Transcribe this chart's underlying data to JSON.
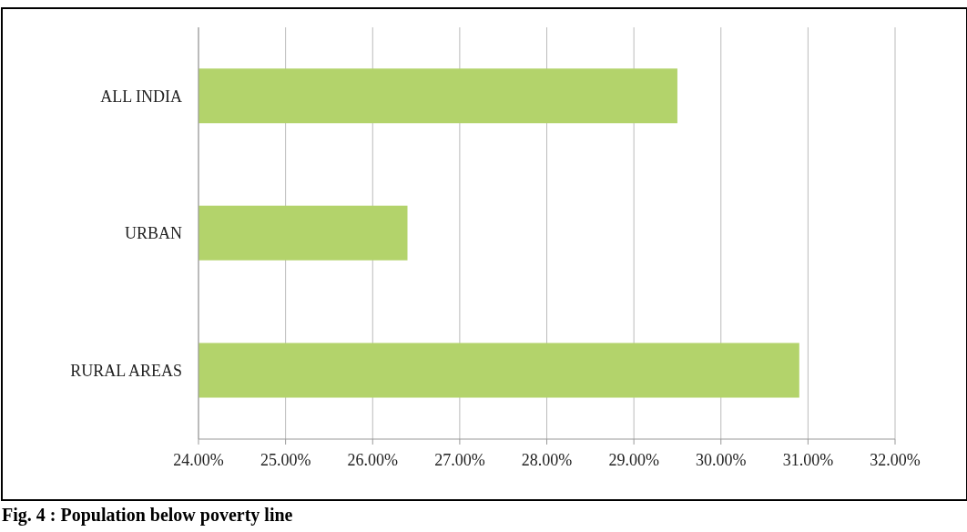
{
  "chart_data": {
    "type": "bar",
    "orientation": "horizontal",
    "title": "Fig. 4 : Population below poverty line",
    "categories": [
      "ALL INDIA",
      "URBAN",
      "RURAL AREAS"
    ],
    "values": [
      29.5,
      26.4,
      30.9
    ],
    "color": "#b3d36b",
    "xlim": [
      24,
      32
    ],
    "xticks": [
      {
        "value": 24,
        "label": "24.00%"
      },
      {
        "value": 25,
        "label": "25.00%"
      },
      {
        "value": 26,
        "label": "26.00%"
      },
      {
        "value": 27,
        "label": "27.00%"
      },
      {
        "value": 28,
        "label": "28.00%"
      },
      {
        "value": 29,
        "label": "29.00%"
      },
      {
        "value": 30,
        "label": "30.00%"
      },
      {
        "value": 31,
        "label": "31.00%"
      },
      {
        "value": 32,
        "label": "32.00%"
      }
    ],
    "grid": "x",
    "legend": false
  }
}
